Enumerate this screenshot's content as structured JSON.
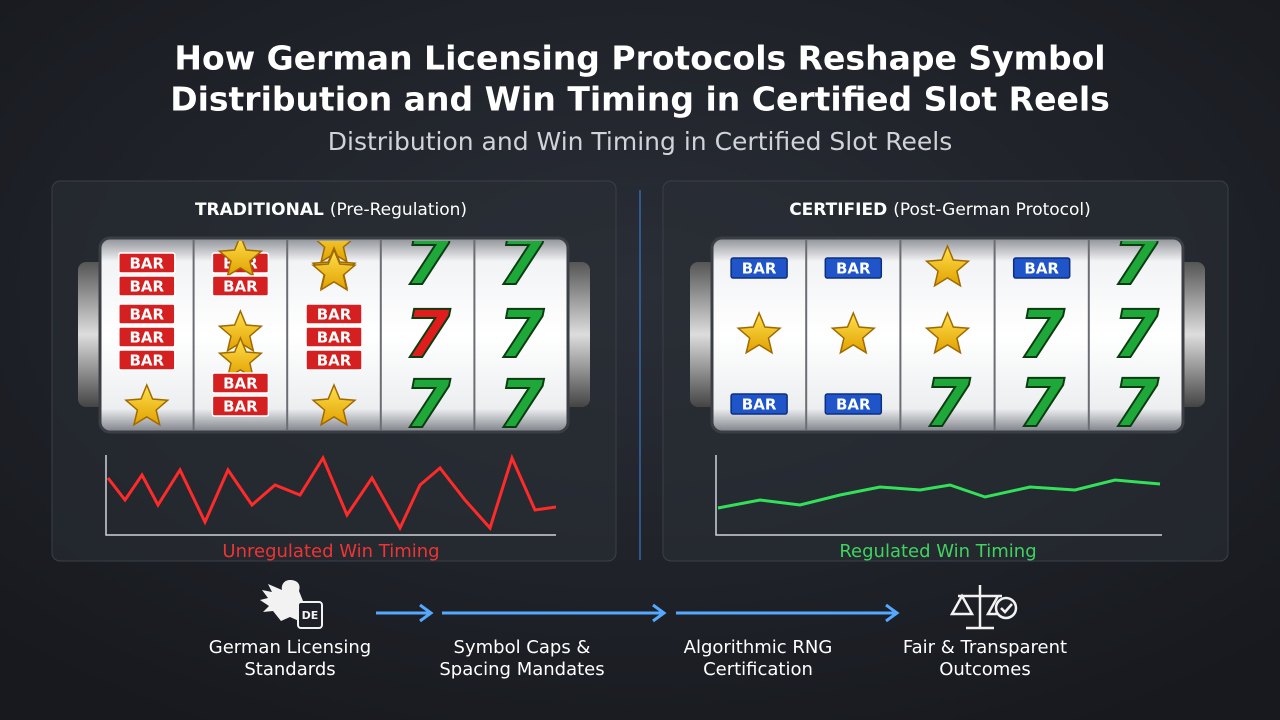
{
  "header": {
    "title_line1": "How German Licensing Protocols Reshape Symbol",
    "title_line2": "Distribution and Win Timing in Certified Slot Reels",
    "subtitle": "Distribution and Win Timing in Certified Slot Reels"
  },
  "panels": [
    {
      "heading_bold": "TRADITIONAL",
      "heading_rest": "(Pre-Regulation)",
      "caption": "Unregulated Win Timing"
    },
    {
      "heading_bold": "CERTIFIED",
      "heading_rest": "(Post-German Protocol)",
      "caption": "Regulated Win Timing"
    }
  ],
  "symbols": {
    "bar": "BAR",
    "seven": "7"
  },
  "icon_badge": "DE",
  "flow": [
    {
      "line1": "German Licensing",
      "line2": "Standards"
    },
    {
      "line1": "Symbol Caps &",
      "line2": "Spacing Mandates"
    },
    {
      "line1": "Algorithmic RNG",
      "line2": "Certification"
    },
    {
      "line1": "Fair & Transparent",
      "line2": "Outcomes"
    }
  ]
}
